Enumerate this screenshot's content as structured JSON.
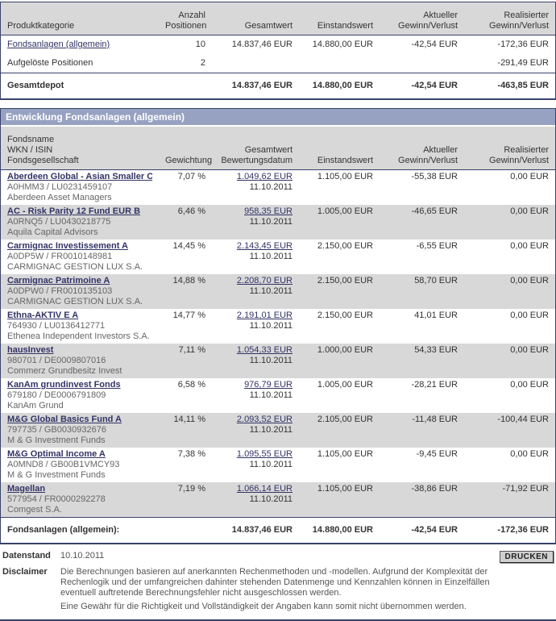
{
  "colors": {
    "title_bar": "#97a1c1",
    "table_border": "#39426b",
    "header_row": "#d8d8d8",
    "alt_row": "#d8d8d8",
    "link": "#333366"
  },
  "summary": {
    "headers": {
      "product": "Produktkategorie",
      "count_l1": "Anzahl",
      "count_l2": "Positionen",
      "total": "Gesamtwert",
      "cost": "Einstandswert",
      "current_l1": "Aktueller",
      "current_l2": "Gewinn/Verlust",
      "realized_l1": "Realisierter",
      "realized_l2": "Gewinn/Verlust"
    },
    "rows": [
      {
        "product": "Fondsanlagen (allgemein)",
        "count": "10",
        "total": "14.837,46 EUR",
        "cost": "14.880,00 EUR",
        "current": "-42,54 EUR",
        "realized": "-172,36 EUR"
      },
      {
        "product": "Aufgelöste Positionen",
        "count": "2",
        "total": "",
        "cost": "",
        "current": "",
        "realized": "-291,49 EUR"
      }
    ],
    "total_row": {
      "label": "Gesamtdepot",
      "total": "14.837,46 EUR",
      "cost": "14.880,00 EUR",
      "current": "-42,54 EUR",
      "realized": "-463,85 EUR"
    }
  },
  "funds": {
    "title": "Entwicklung Fondsanlagen (allgemein)",
    "headers": {
      "name_l1": "Fondsname",
      "name_l2": "WKN / ISIN",
      "name_l3": "Fondsgesellschaft",
      "weight": "Gewichtung",
      "value_l1": "Gesamtwert",
      "value_l2": "Bewertungsdatum",
      "cost": "Einstandswert",
      "current_l1": "Aktueller",
      "current_l2": "Gewinn/Verlust",
      "realized_l1": "Realisierter",
      "realized_l2": "Gewinn/Verlust"
    },
    "rows": [
      {
        "name": "Aberdeen Global - Asian Smaller C...",
        "wkn_isin": "A0HMM3 / LU0231459107",
        "company": "Aberdeen Asset Managers",
        "weight": "7,07 %",
        "value": "1.049,62 EUR",
        "date": "11.10.2011",
        "cost": "1.105,00 EUR",
        "current": "-55,38 EUR",
        "realized": "0,00 EUR"
      },
      {
        "name": "AC - Risk Parity 12 Fund EUR B",
        "wkn_isin": "A0RNQ5 / LU0430218775",
        "company": "Aquila Capital Advisors",
        "weight": "6,46 %",
        "value": "958,35 EUR",
        "date": "11.10.2011",
        "cost": "1.005,00 EUR",
        "current": "-46,65 EUR",
        "realized": "0,00 EUR"
      },
      {
        "name": "Carmignac Investissement A",
        "wkn_isin": "A0DP5W / FR0010148981",
        "company": "CARMIGNAC GESTION LUX S.A.",
        "weight": "14,45 %",
        "value": "2.143,45 EUR",
        "date": "11.10.2011",
        "cost": "2.150,00 EUR",
        "current": "-6,55 EUR",
        "realized": "0,00 EUR"
      },
      {
        "name": "Carmignac Patrimoine A",
        "wkn_isin": "A0DPW0 / FR0010135103",
        "company": "CARMIGNAC GESTION LUX S.A.",
        "weight": "14,88 %",
        "value": "2.208,70 EUR",
        "date": "11.10.2011",
        "cost": "2.150,00 EUR",
        "current": "58,70 EUR",
        "realized": "0,00 EUR"
      },
      {
        "name": "Ethna-AKTIV E A",
        "wkn_isin": "764930 / LU0136412771",
        "company": "Ethenea Independent Investors S.A.",
        "weight": "14,77 %",
        "value": "2.191,01 EUR",
        "date": "11.10.2011",
        "cost": "2.150,00 EUR",
        "current": "41,01 EUR",
        "realized": "0,00 EUR"
      },
      {
        "name": "hausInvest",
        "wkn_isin": "980701 / DE0009807016",
        "company": "Commerz Grundbesitz Invest",
        "weight": "7,11 %",
        "value": "1.054,33 EUR",
        "date": "11.10.2011",
        "cost": "1.000,00 EUR",
        "current": "54,33 EUR",
        "realized": "0,00 EUR"
      },
      {
        "name": "KanAm grundinvest Fonds",
        "wkn_isin": "679180 / DE0006791809",
        "company": "KanAm Grund",
        "weight": "6,58 %",
        "value": "976,79 EUR",
        "date": "11.10.2011",
        "cost": "1.005,00 EUR",
        "current": "-28,21 EUR",
        "realized": "0,00 EUR"
      },
      {
        "name": "M&G Global Basics Fund A",
        "wkn_isin": "797735 / GB0030932676",
        "company": "M & G Investment Funds",
        "weight": "14,11 %",
        "value": "2.093,52 EUR",
        "date": "11.10.2011",
        "cost": "2.105,00 EUR",
        "current": "-11,48 EUR",
        "realized": "-100,44 EUR"
      },
      {
        "name": "M&G Optimal Income A",
        "wkn_isin": "A0MND8 / GB00B1VMCY93",
        "company": "M & G Investment Funds",
        "weight": "7,38 %",
        "value": "1.095,55 EUR",
        "date": "11.10.2011",
        "cost": "1.105,00 EUR",
        "current": "-9,45 EUR",
        "realized": "0,00 EUR"
      },
      {
        "name": "Magellan",
        "wkn_isin": "577954 / FR0000292278",
        "company": "Comgest S.A.",
        "weight": "7,19 %",
        "value": "1.066,14 EUR",
        "date": "11.10.2011",
        "cost": "1.105,00 EUR",
        "current": "-38,86 EUR",
        "realized": "-71,92 EUR"
      }
    ],
    "footer": {
      "label": "Fondsanlagen (allgemein):",
      "total": "14.837,46 EUR",
      "cost": "14.880,00 EUR",
      "current": "-42,54 EUR",
      "realized": "-172,36 EUR"
    }
  },
  "bottom": {
    "datenstand_label": "Datenstand",
    "datenstand_value": "10.10.2011",
    "print_button": "DRUCKEN",
    "disclaimer_label": "Disclaimer",
    "disclaimer_p1": "Die Berechnungen basieren auf anerkannten Rechenmethoden und -modellen. Aufgrund der Komplexität der Rechenlogik und der umfangreichen dahinter stehenden Datenmenge und Kennzahlen können in Einzelfällen eventuell auftretende Berechnungsfehler nicht ausgeschlossen werden.",
    "disclaimer_p2": "Eine Gewähr für die Richtigkeit und Vollständigkeit der Angaben kann somit nicht übernommen werden."
  }
}
